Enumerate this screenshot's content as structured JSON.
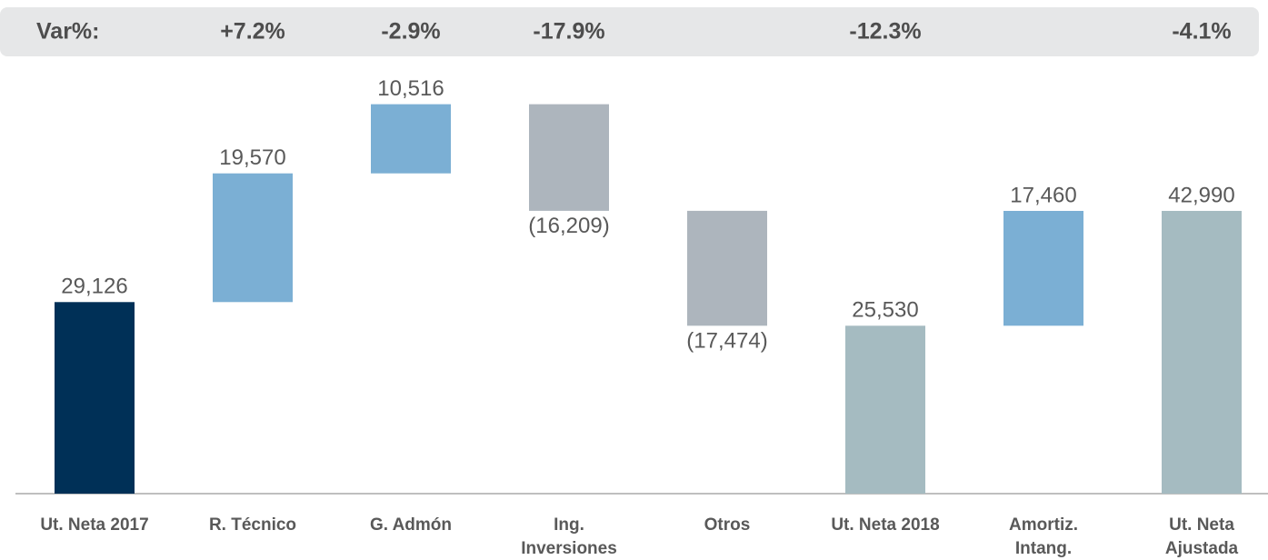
{
  "chart_data": {
    "type": "waterfall",
    "var_title": "Var%:",
    "var_labels": [
      null,
      "+7.2%",
      "-2.9%",
      "-17.9%",
      null,
      "-12.3%",
      null,
      "-4.1%"
    ],
    "categories": [
      "Ut. Neta 2017",
      "R. Técnico",
      "G. Admón",
      [
        "Ing.",
        "Inversiones"
      ],
      "Otros",
      "Ut. Neta 2018",
      [
        "Amortiz.",
        "Intang."
      ],
      [
        "Ut. Neta",
        "Ajustada"
      ]
    ],
    "values": [
      29126,
      19570,
      10516,
      -16209,
      -17474,
      25530,
      17460,
      42990
    ],
    "value_labels": [
      "29,126",
      "19,570",
      "10,516",
      "(16,209)",
      "(17,474)",
      "25,530",
      "17,460",
      "42,990"
    ],
    "totals": [
      true,
      false,
      false,
      false,
      false,
      true,
      false,
      true
    ],
    "colors": [
      "#003057",
      "#7bafd4",
      "#7bafd4",
      "#adb5bd",
      "#adb5bd",
      "#a5bbc1",
      "#7bafd4",
      "#a5bbc1"
    ],
    "ylim": [
      0,
      64000
    ]
  }
}
